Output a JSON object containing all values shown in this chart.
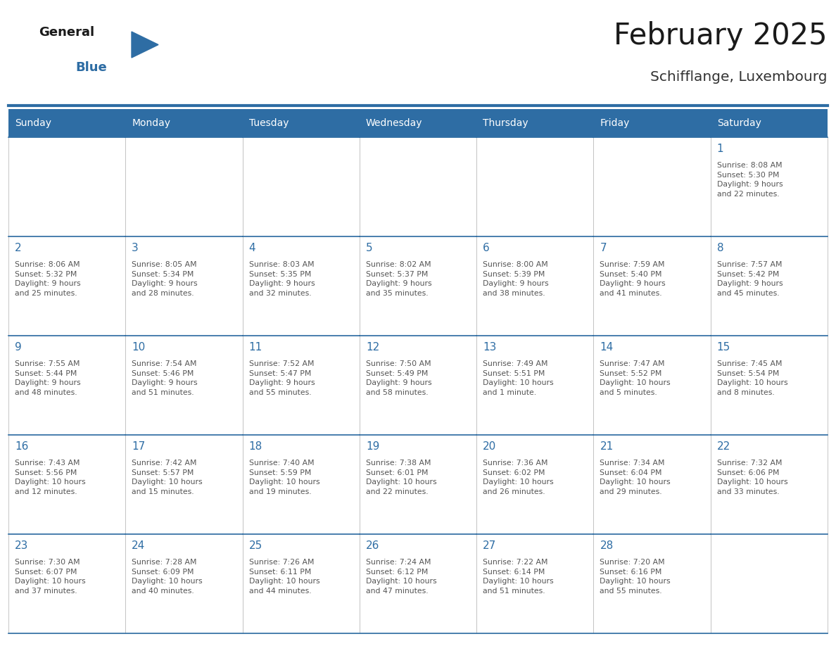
{
  "title": "February 2025",
  "subtitle": "Schifflange, Luxembourg",
  "days_of_week": [
    "Sunday",
    "Monday",
    "Tuesday",
    "Wednesday",
    "Thursday",
    "Friday",
    "Saturday"
  ],
  "header_bg": "#2E6DA4",
  "header_text": "#FFFFFF",
  "cell_bg": "#FFFFFF",
  "cell_border_color": "#BBBBBB",
  "row_border_color": "#2E6DA4",
  "day_number_color": "#2E6DA4",
  "cell_text_color": "#555555",
  "title_color": "#1a1a1a",
  "subtitle_color": "#333333",
  "logo_general_color": "#1a1a1a",
  "logo_blue_color": "#2E6DA4",
  "calendar_data": [
    [
      {
        "day": "",
        "info": ""
      },
      {
        "day": "",
        "info": ""
      },
      {
        "day": "",
        "info": ""
      },
      {
        "day": "",
        "info": ""
      },
      {
        "day": "",
        "info": ""
      },
      {
        "day": "",
        "info": ""
      },
      {
        "day": "1",
        "info": "Sunrise: 8:08 AM\nSunset: 5:30 PM\nDaylight: 9 hours\nand 22 minutes."
      }
    ],
    [
      {
        "day": "2",
        "info": "Sunrise: 8:06 AM\nSunset: 5:32 PM\nDaylight: 9 hours\nand 25 minutes."
      },
      {
        "day": "3",
        "info": "Sunrise: 8:05 AM\nSunset: 5:34 PM\nDaylight: 9 hours\nand 28 minutes."
      },
      {
        "day": "4",
        "info": "Sunrise: 8:03 AM\nSunset: 5:35 PM\nDaylight: 9 hours\nand 32 minutes."
      },
      {
        "day": "5",
        "info": "Sunrise: 8:02 AM\nSunset: 5:37 PM\nDaylight: 9 hours\nand 35 minutes."
      },
      {
        "day": "6",
        "info": "Sunrise: 8:00 AM\nSunset: 5:39 PM\nDaylight: 9 hours\nand 38 minutes."
      },
      {
        "day": "7",
        "info": "Sunrise: 7:59 AM\nSunset: 5:40 PM\nDaylight: 9 hours\nand 41 minutes."
      },
      {
        "day": "8",
        "info": "Sunrise: 7:57 AM\nSunset: 5:42 PM\nDaylight: 9 hours\nand 45 minutes."
      }
    ],
    [
      {
        "day": "9",
        "info": "Sunrise: 7:55 AM\nSunset: 5:44 PM\nDaylight: 9 hours\nand 48 minutes."
      },
      {
        "day": "10",
        "info": "Sunrise: 7:54 AM\nSunset: 5:46 PM\nDaylight: 9 hours\nand 51 minutes."
      },
      {
        "day": "11",
        "info": "Sunrise: 7:52 AM\nSunset: 5:47 PM\nDaylight: 9 hours\nand 55 minutes."
      },
      {
        "day": "12",
        "info": "Sunrise: 7:50 AM\nSunset: 5:49 PM\nDaylight: 9 hours\nand 58 minutes."
      },
      {
        "day": "13",
        "info": "Sunrise: 7:49 AM\nSunset: 5:51 PM\nDaylight: 10 hours\nand 1 minute."
      },
      {
        "day": "14",
        "info": "Sunrise: 7:47 AM\nSunset: 5:52 PM\nDaylight: 10 hours\nand 5 minutes."
      },
      {
        "day": "15",
        "info": "Sunrise: 7:45 AM\nSunset: 5:54 PM\nDaylight: 10 hours\nand 8 minutes."
      }
    ],
    [
      {
        "day": "16",
        "info": "Sunrise: 7:43 AM\nSunset: 5:56 PM\nDaylight: 10 hours\nand 12 minutes."
      },
      {
        "day": "17",
        "info": "Sunrise: 7:42 AM\nSunset: 5:57 PM\nDaylight: 10 hours\nand 15 minutes."
      },
      {
        "day": "18",
        "info": "Sunrise: 7:40 AM\nSunset: 5:59 PM\nDaylight: 10 hours\nand 19 minutes."
      },
      {
        "day": "19",
        "info": "Sunrise: 7:38 AM\nSunset: 6:01 PM\nDaylight: 10 hours\nand 22 minutes."
      },
      {
        "day": "20",
        "info": "Sunrise: 7:36 AM\nSunset: 6:02 PM\nDaylight: 10 hours\nand 26 minutes."
      },
      {
        "day": "21",
        "info": "Sunrise: 7:34 AM\nSunset: 6:04 PM\nDaylight: 10 hours\nand 29 minutes."
      },
      {
        "day": "22",
        "info": "Sunrise: 7:32 AM\nSunset: 6:06 PM\nDaylight: 10 hours\nand 33 minutes."
      }
    ],
    [
      {
        "day": "23",
        "info": "Sunrise: 7:30 AM\nSunset: 6:07 PM\nDaylight: 10 hours\nand 37 minutes."
      },
      {
        "day": "24",
        "info": "Sunrise: 7:28 AM\nSunset: 6:09 PM\nDaylight: 10 hours\nand 40 minutes."
      },
      {
        "day": "25",
        "info": "Sunrise: 7:26 AM\nSunset: 6:11 PM\nDaylight: 10 hours\nand 44 minutes."
      },
      {
        "day": "26",
        "info": "Sunrise: 7:24 AM\nSunset: 6:12 PM\nDaylight: 10 hours\nand 47 minutes."
      },
      {
        "day": "27",
        "info": "Sunrise: 7:22 AM\nSunset: 6:14 PM\nDaylight: 10 hours\nand 51 minutes."
      },
      {
        "day": "28",
        "info": "Sunrise: 7:20 AM\nSunset: 6:16 PM\nDaylight: 10 hours\nand 55 minutes."
      },
      {
        "day": "",
        "info": ""
      }
    ]
  ]
}
